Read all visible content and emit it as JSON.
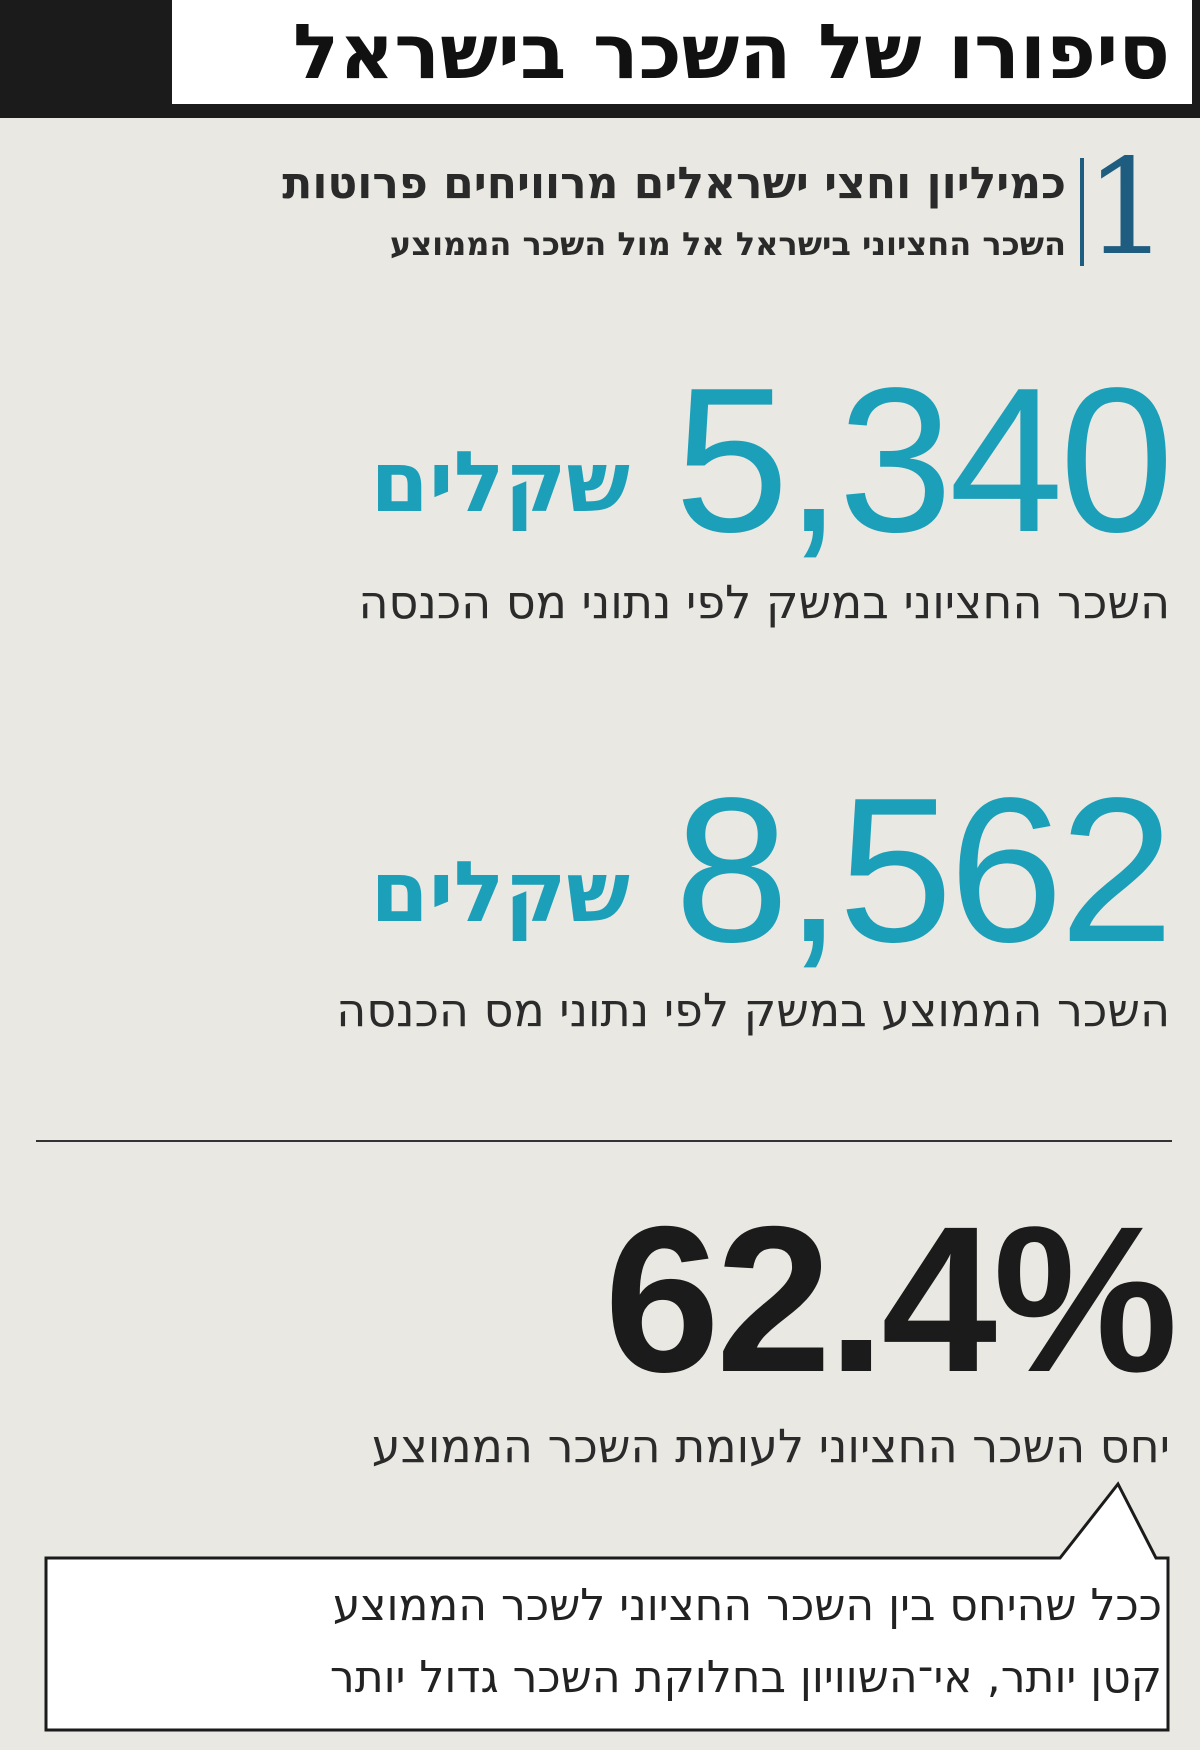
{
  "header": {
    "title": "סיפורו של השכר בישראל"
  },
  "section": {
    "number": "1",
    "heading": "כמיליון וחצי ישראלים מרוויחים פרוטות",
    "subheading": "השכר החציוני בישראל אל מול השכר הממוצע"
  },
  "stats": {
    "median": {
      "value": "5,340",
      "unit": "שקלים",
      "caption": "השכר החציוני במשק לפי נתוני מס הכנסה"
    },
    "average": {
      "value": "8,562",
      "unit": "שקלים",
      "caption": "השכר הממוצע במשק לפי נתוני מס הכנסה"
    },
    "ratio": {
      "value": "62.4%",
      "caption": "יחס השכר החציוני לעומת השכר הממוצע"
    }
  },
  "callout": {
    "line1": "ככל שהיחס בין השכר החציוני לשכר הממוצע",
    "line2": "קטן יותר, אי־השוויון בחלוקת השכר גדול יותר"
  },
  "colors": {
    "accent": "#1c9fb8",
    "section_number": "#1f5d80",
    "header_background": "#1b1b1b",
    "page_background": "#e9e8e2"
  }
}
